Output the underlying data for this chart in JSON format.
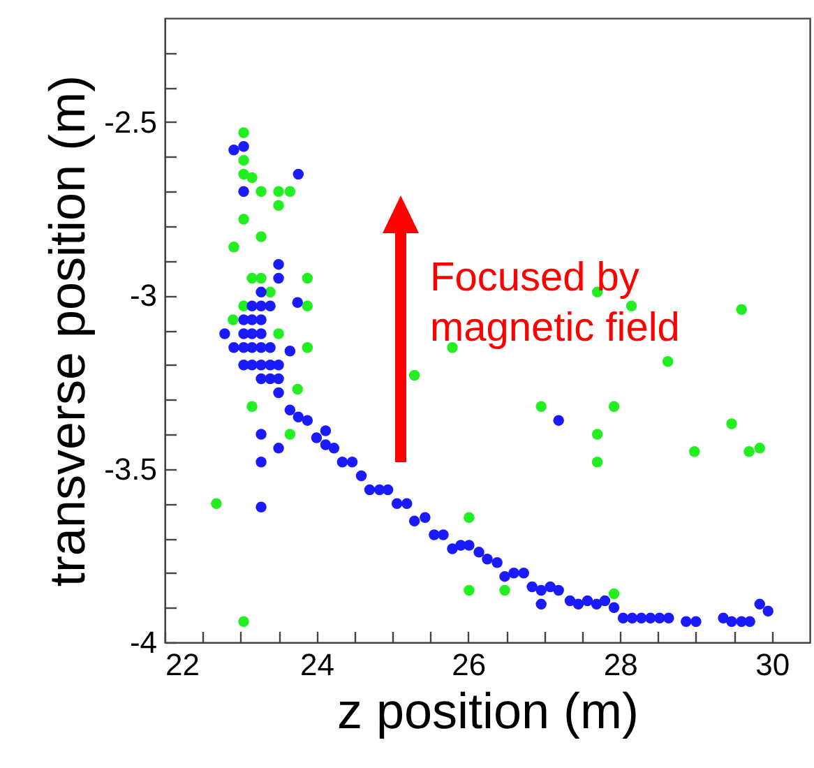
{
  "chart_data": {
    "type": "scatter",
    "xlabel": "z position (m)",
    "ylabel": "transverse position (m)",
    "annotations": [
      "Focused by magnetic field"
    ],
    "xlim": [
      22,
      30.5
    ],
    "ylim": [
      -4,
      -2.2
    ],
    "xticks": [
      22,
      {
        "value": 22.5,
        "label": null
      },
      24,
      {
        "value": 23,
        "label": null
      },
      {
        "value": 23.5,
        "label": null
      },
      {
        "value": 24.5,
        "label": null
      },
      26,
      {
        "value": 25,
        "label": null
      },
      {
        "value": 25.5,
        "label": null
      },
      {
        "value": 26.5,
        "label": null
      },
      28,
      {
        "value": 27,
        "label": null
      },
      {
        "value": 27.5,
        "label": null
      },
      {
        "value": 28.5,
        "label": null
      },
      30,
      {
        "value": 29,
        "label": null
      },
      {
        "value": 29.5,
        "label": null
      }
    ],
    "yticks": [
      -4,
      {
        "value": -3.9,
        "label": null
      },
      {
        "value": -3.8,
        "label": null
      },
      {
        "value": -3.7,
        "label": null
      },
      {
        "value": -3.6,
        "label": null
      },
      -3.5,
      {
        "value": -3.4,
        "label": null
      },
      {
        "value": -3.3,
        "label": null
      },
      {
        "value": -3.2,
        "label": null
      },
      {
        "value": -3.1,
        "label": null
      },
      -3,
      {
        "value": -2.9,
        "label": null
      },
      {
        "value": -2.8,
        "label": null
      },
      {
        "value": -2.7,
        "label": null
      },
      {
        "value": -2.6,
        "label": null
      },
      -2.5,
      {
        "value": -2.4,
        "label": null
      },
      {
        "value": -2.3,
        "label": null
      }
    ],
    "grid": false,
    "series": [
      {
        "color": "#22ee22",
        "x": [
          23.04,
          23.04,
          23.04,
          23.15,
          23.27,
          23.5,
          23.65,
          23.5,
          23.04,
          23.27,
          22.91,
          23.15,
          23.27,
          23.39,
          23.88,
          23.04,
          22.9,
          23.88,
          23.5,
          23.88,
          23.75,
          23.15,
          23.65,
          22.68,
          23.04,
          27.7,
          28.15,
          29.6,
          25.79,
          28.63,
          25.29,
          26.96,
          27.92,
          29.47,
          27.7,
          27.7,
          28.98,
          29.7,
          29.84,
          26.01,
          26.01,
          26.48,
          27.92
        ],
        "values": [
          -2.53,
          -2.61,
          -2.65,
          -2.66,
          -2.7,
          -2.7,
          -2.7,
          -2.74,
          -2.78,
          -2.83,
          -2.86,
          -2.95,
          -2.95,
          -2.99,
          -2.95,
          -3.03,
          -3.07,
          -3.03,
          -3.11,
          -3.15,
          -3.27,
          -3.32,
          -3.4,
          -3.6,
          -3.94,
          -2.99,
          -3.03,
          -3.04,
          -3.15,
          -3.19,
          -3.23,
          -3.32,
          -3.32,
          -3.37,
          -3.4,
          -3.48,
          -3.45,
          -3.45,
          -3.44,
          -3.64,
          -3.85,
          -3.85,
          -3.86
        ]
      },
      {
        "color": "#1a1aff",
        "x": [
          22.91,
          23.04,
          23.76,
          23.04,
          23.5,
          23.5,
          23.75,
          23.27,
          23.15,
          23.27,
          23.39,
          23.04,
          23.15,
          23.27,
          23.04,
          23.15,
          23.27,
          22.79,
          22.91,
          23.04,
          23.15,
          23.27,
          23.39,
          23.65,
          23.04,
          23.15,
          23.27,
          23.39,
          23.5,
          23.27,
          23.39,
          23.5,
          23.5,
          23.65,
          23.76,
          23.88,
          24.12,
          24.0,
          24.12,
          24.23,
          23.27,
          23.5,
          23.27,
          23.27,
          24.34,
          24.47,
          24.59,
          24.7,
          24.83,
          24.94,
          25.06,
          25.19,
          25.29,
          25.43,
          25.55,
          25.67,
          25.79,
          25.9,
          26.01,
          26.14,
          26.25,
          26.38,
          26.48,
          26.6,
          26.73,
          26.84,
          26.96,
          27.08,
          27.19,
          26.96,
          27.34,
          27.45,
          27.57,
          27.69,
          27.8,
          27.92,
          28.04,
          28.16,
          28.28,
          28.4,
          28.52,
          28.64,
          28.87,
          29.0,
          29.36,
          29.47,
          29.6,
          29.71,
          29.84,
          29.95,
          27.19
        ],
        "values": [
          -2.58,
          -2.57,
          -2.65,
          -2.7,
          -2.91,
          -2.95,
          -3.02,
          -2.99,
          -3.03,
          -3.03,
          -3.03,
          -3.07,
          -3.07,
          -3.07,
          -3.11,
          -3.11,
          -3.11,
          -3.11,
          -3.15,
          -3.15,
          -3.15,
          -3.15,
          -3.15,
          -3.16,
          -3.2,
          -3.2,
          -3.2,
          -3.2,
          -3.2,
          -3.24,
          -3.24,
          -3.24,
          -3.28,
          -3.33,
          -3.35,
          -3.36,
          -3.39,
          -3.41,
          -3.43,
          -3.44,
          -3.4,
          -3.44,
          -3.48,
          -3.61,
          -3.48,
          -3.48,
          -3.52,
          -3.56,
          -3.56,
          -3.56,
          -3.6,
          -3.6,
          -3.65,
          -3.64,
          -3.69,
          -3.69,
          -3.73,
          -3.72,
          -3.72,
          -3.74,
          -3.76,
          -3.77,
          -3.81,
          -3.8,
          -3.8,
          -3.84,
          -3.85,
          -3.84,
          -3.85,
          -3.89,
          -3.88,
          -3.89,
          -3.88,
          -3.89,
          -3.88,
          -3.9,
          -3.93,
          -3.93,
          -3.93,
          -3.93,
          -3.93,
          -3.93,
          -3.94,
          -3.94,
          -3.93,
          -3.94,
          -3.94,
          -3.94,
          -3.89,
          -3.91,
          -3.36
        ]
      }
    ]
  }
}
